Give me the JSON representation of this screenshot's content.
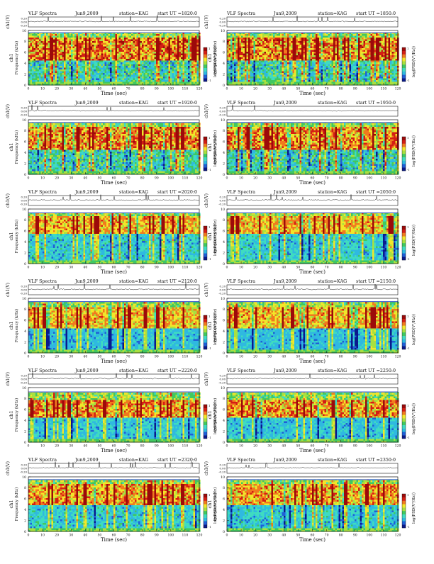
{
  "page": {
    "kind": "VLF spectrogram sheet",
    "columns": 2,
    "rows": 6
  },
  "colors": {
    "spectro_scale": [
      "#0a1a8c",
      "#1f5fd6",
      "#2fb9e0",
      "#3fdcc0",
      "#40c860",
      "#a8e040",
      "#f2e62a",
      "#f07a1e",
      "#d41e14",
      "#9c0a0a"
    ],
    "waveform": "#222222",
    "axis": "#111111",
    "hline": "#4d6bd0"
  },
  "chart_data": [
    {
      "type": "heatmap",
      "title": "VLF Spectra",
      "date": "Jun9,2009",
      "station": "station=KAG",
      "start": "start UT =1820:0",
      "wave_ylabel": "ch1(V)",
      "wave_ticks": [
        "0.20",
        "0.00",
        "-0.20"
      ],
      "ylabel_top": "ch1",
      "ylabel": "Frequency (kHz)",
      "yticks": [
        "0",
        "2",
        "4",
        "6",
        "8",
        "10"
      ],
      "xticks": [
        "0",
        "10",
        "20",
        "30",
        "40",
        "50",
        "60",
        "70",
        "80",
        "90",
        "100",
        "110",
        "120"
      ],
      "xlabel": "Time (sec)",
      "ylim": [
        0,
        10
      ],
      "xlim": [
        0,
        120
      ],
      "colorbar_label": "log(PSD(V²/Hz))",
      "colorbar_ticks": [
        "-1",
        "1"
      ],
      "top_kHz": 9.6,
      "band_kHz": [
        4.8,
        9.0
      ],
      "intensity": 0.95,
      "lower_intensity": 0.45
    },
    {
      "type": "heatmap",
      "title": "VLF Spectra",
      "date": "Jun9,2009",
      "station": "station=KAG",
      "start": "start UT =1850:0",
      "wave_ylabel": "ch1(V)",
      "wave_ticks": [
        "0.20",
        "0.00",
        "-0.20"
      ],
      "ylabel_top": "ch1",
      "ylabel": "Frequency (kHz)",
      "yticks": [
        "0",
        "2",
        "4",
        "6",
        "8",
        "10"
      ],
      "xticks": [
        "0",
        "10",
        "20",
        "30",
        "40",
        "50",
        "60",
        "70",
        "80",
        "90",
        "100",
        "110",
        "120"
      ],
      "xlabel": "Time (sec)",
      "ylim": [
        0,
        10
      ],
      "xlim": [
        0,
        120
      ],
      "colorbar_label": "log(PSD(V²/Hz))",
      "colorbar_ticks": [
        "-1",
        "1"
      ],
      "top_kHz": 9.6,
      "band_kHz": [
        4.8,
        9.0
      ],
      "intensity": 0.95,
      "lower_intensity": 0.45
    },
    {
      "type": "heatmap",
      "title": "VLF Spectra",
      "date": "Jun9,2009",
      "station": "station=KAG",
      "start": "start UT =1920:0",
      "wave_ylabel": "ch1(V)",
      "wave_ticks": [
        "0.20",
        "0.00",
        "-0.20"
      ],
      "ylabel_top": "ch1",
      "ylabel": "Frequency (kHz)",
      "yticks": [
        "0",
        "2",
        "4",
        "6",
        "8",
        "10"
      ],
      "xticks": [
        "0",
        "10",
        "20",
        "30",
        "40",
        "50",
        "60",
        "70",
        "80",
        "90",
        "100",
        "110",
        "120"
      ],
      "xlabel": "Time (sec)",
      "ylim": [
        0,
        10
      ],
      "xlim": [
        0,
        120
      ],
      "colorbar_label": "log(PSD(V²/Hz))",
      "colorbar_ticks": [
        "-1",
        "1"
      ],
      "top_kHz": 9.5,
      "band_kHz": [
        4.5,
        8.8
      ],
      "intensity": 0.9,
      "lower_intensity": 0.45
    },
    {
      "type": "heatmap",
      "title": "VLF Spectra",
      "date": "Jun9,2009",
      "station": "station=KAG",
      "start": "start UT =1950:0",
      "wave_ylabel": "ch1(V)",
      "wave_ticks": [
        "0.20",
        "0.00",
        "-0.20"
      ],
      "ylabel_top": "ch1",
      "ylabel": "Frequency (kHz)",
      "yticks": [
        "0",
        "2",
        "4",
        "6",
        "8",
        "10"
      ],
      "xticks": [
        "0",
        "10",
        "20",
        "30",
        "40",
        "50",
        "60",
        "70",
        "80",
        "90",
        "100",
        "110",
        "120"
      ],
      "xlabel": "Time (sec)",
      "ylim": [
        0,
        10
      ],
      "xlim": [
        0,
        120
      ],
      "colorbar_label": "log(PSD(V²/Hz))",
      "colorbar_ticks": [
        "-1",
        "1"
      ],
      "top_kHz": 9.5,
      "band_kHz": [
        4.5,
        8.8
      ],
      "intensity": 0.9,
      "lower_intensity": 0.45
    },
    {
      "type": "heatmap",
      "title": "VLF Spectra",
      "date": "Jun9,2009",
      "station": "station=KAG",
      "start": "start UT =2020:0",
      "wave_ylabel": "ch1(V)",
      "wave_ticks": [
        "0.20",
        "0.00",
        "-0.20"
      ],
      "ylabel_top": "ch1",
      "ylabel": "Frequency (kHz)",
      "yticks": [
        "0",
        "2",
        "4",
        "6",
        "8",
        "10"
      ],
      "xticks": [
        "0",
        "10",
        "20",
        "30",
        "40",
        "50",
        "60",
        "70",
        "80",
        "90",
        "100",
        "110",
        "120"
      ],
      "xlabel": "Time (sec)",
      "ylim": [
        0,
        10
      ],
      "xlim": [
        0,
        120
      ],
      "colorbar_label": "log(PSD(V²/Hz))",
      "colorbar_ticks": [
        "-1",
        "1"
      ],
      "top_kHz": 9.3,
      "band_kHz": [
        5.5,
        8.8
      ],
      "intensity": 0.7,
      "lower_intensity": 0.3
    },
    {
      "type": "heatmap",
      "title": "VLF Spectra",
      "date": "Jun9,2009",
      "station": "station=KAG",
      "start": "start UT =2050:0",
      "wave_ylabel": "ch1(V)",
      "wave_ticks": [
        "0.20",
        "0.00",
        "-0.20"
      ],
      "ylabel_top": "ch1",
      "ylabel": "Frequency (kHz)",
      "yticks": [
        "0",
        "2",
        "4",
        "6",
        "8",
        "10"
      ],
      "xticks": [
        "0",
        "10",
        "20",
        "30",
        "40",
        "50",
        "60",
        "70",
        "80",
        "90",
        "100",
        "110",
        "120"
      ],
      "xlabel": "Time (sec)",
      "ylim": [
        0,
        10
      ],
      "xlim": [
        0,
        120
      ],
      "colorbar_label": "log(PSD(V²/Hz))",
      "colorbar_ticks": [
        "-1",
        "1"
      ],
      "top_kHz": 9.3,
      "band_kHz": [
        5.5,
        8.8
      ],
      "intensity": 0.65,
      "lower_intensity": 0.3
    },
    {
      "type": "heatmap",
      "title": "VLF Spectra",
      "date": "Jun9,2009",
      "station": "station=KAG",
      "start": "start UT =2120:0",
      "wave_ylabel": "ch1(V)",
      "wave_ticks": [
        "0.20",
        "0.00",
        "-0.20"
      ],
      "ylabel_top": "ch1",
      "ylabel": "Frequency (kHz)",
      "yticks": [
        "0",
        "2",
        "4",
        "6",
        "8",
        "10"
      ],
      "xticks": [
        "0",
        "10",
        "20",
        "30",
        "40",
        "50",
        "60",
        "70",
        "80",
        "90",
        "100",
        "110",
        "120"
      ],
      "xlabel": "Time (sec)",
      "ylim": [
        0,
        10
      ],
      "xlim": [
        0,
        120
      ],
      "colorbar_label": "log(PSD(V²/Hz))",
      "colorbar_ticks": [
        "-1",
        "1"
      ],
      "top_kHz": 9.4,
      "band_kHz": [
        4.5,
        8.5
      ],
      "intensity": 0.65,
      "lower_intensity": 0.2
    },
    {
      "type": "heatmap",
      "title": "VLF Spectra",
      "date": "Jun9,2009",
      "station": "station=KAG",
      "start": "start UT =2150:0",
      "wave_ylabel": "ch1(V)",
      "wave_ticks": [
        "0.20",
        "0.00",
        "-0.20"
      ],
      "ylabel_top": "ch1",
      "ylabel": "Frequency (kHz)",
      "yticks": [
        "0",
        "2",
        "4",
        "6",
        "8",
        "10"
      ],
      "xticks": [
        "0",
        "10",
        "20",
        "30",
        "40",
        "50",
        "60",
        "70",
        "80",
        "90",
        "100",
        "110",
        "120"
      ],
      "xlabel": "Time (sec)",
      "ylim": [
        0,
        10
      ],
      "xlim": [
        0,
        120
      ],
      "colorbar_label": "log(PSD(V²/Hz))",
      "colorbar_ticks": [
        "-1",
        "1"
      ],
      "top_kHz": 9.4,
      "band_kHz": [
        4.5,
        8.5
      ],
      "intensity": 0.7,
      "lower_intensity": 0.2
    },
    {
      "type": "heatmap",
      "title": "VLF Spectra",
      "date": "Jun9,2009",
      "station": "station=KAG",
      "start": "start UT =2220:0",
      "wave_ylabel": "ch1(V)",
      "wave_ticks": [
        "0.20",
        "0.00",
        "-0.20"
      ],
      "ylabel_top": "ch1",
      "ylabel": "Frequency (kHz)",
      "yticks": [
        "0",
        "2",
        "4",
        "6",
        "8",
        "10"
      ],
      "xticks": [
        "0",
        "10",
        "20",
        "30",
        "40",
        "50",
        "60",
        "70",
        "80",
        "90",
        "100",
        "110",
        "120"
      ],
      "xlabel": "Time (sec)",
      "ylim": [
        0,
        10
      ],
      "xlim": [
        0,
        120
      ],
      "colorbar_label": "log(PSD(V²/Hz))",
      "colorbar_ticks": [
        "-1",
        "1"
      ],
      "top_kHz": 9.2,
      "band_kHz": [
        4.8,
        8.0
      ],
      "intensity": 0.85,
      "lower_intensity": 0.25
    },
    {
      "type": "heatmap",
      "title": "VLF Spectra",
      "date": "Jun9,2009",
      "station": "station=KAG",
      "start": "start UT =2250:0",
      "wave_ylabel": "ch1(V)",
      "wave_ticks": [
        "0.20",
        "0.00",
        "-0.20"
      ],
      "ylabel_top": "ch1",
      "ylabel": "Frequency (kHz)",
      "yticks": [
        "0",
        "2",
        "4",
        "6",
        "8",
        "10"
      ],
      "xticks": [
        "0",
        "10",
        "20",
        "30",
        "40",
        "50",
        "60",
        "70",
        "80",
        "90",
        "100",
        "110",
        "120"
      ],
      "xlabel": "Time (sec)",
      "ylim": [
        0,
        10
      ],
      "xlim": [
        0,
        120
      ],
      "colorbar_label": "log(PSD(V²/Hz))",
      "colorbar_ticks": [
        "-1",
        "1"
      ],
      "top_kHz": 9.2,
      "band_kHz": [
        4.8,
        8.0
      ],
      "intensity": 0.85,
      "lower_intensity": 0.25
    },
    {
      "type": "heatmap",
      "title": "VLF Spectra",
      "date": "Jun9,2009",
      "station": "station=KAG",
      "start": "start UT =2320:0",
      "wave_ylabel": "ch1(V)",
      "wave_ticks": [
        "0.20",
        "0.00",
        "-0.20"
      ],
      "ylabel_top": "ch1",
      "ylabel": "Frequency (kHz)",
      "yticks": [
        "0",
        "2",
        "4",
        "6",
        "8",
        "10"
      ],
      "xticks": [
        "0",
        "10",
        "20",
        "30",
        "40",
        "50",
        "60",
        "70",
        "80",
        "90",
        "100",
        "110",
        "120"
      ],
      "xlabel": "Time (sec)",
      "ylim": [
        0,
        10
      ],
      "xlim": [
        0,
        120
      ],
      "colorbar_label": "log(PSD(V²/Hz))",
      "colorbar_ticks": [
        "-1",
        "1"
      ],
      "top_kHz": 9.5,
      "band_kHz": [
        5.0,
        9.0
      ],
      "intensity": 0.8,
      "lower_intensity": 0.3
    },
    {
      "type": "heatmap",
      "title": "VLF Spectra",
      "date": "Jun9,2009",
      "station": "station=KAG",
      "start": "start UT =2350:0",
      "wave_ylabel": "ch1(V)",
      "wave_ticks": [
        "0.20",
        "0.00",
        "-0.20"
      ],
      "ylabel_top": "ch1",
      "ylabel": "Frequency (kHz)",
      "yticks": [
        "0",
        "2",
        "4",
        "6",
        "8",
        "10"
      ],
      "xticks": [
        "0",
        "10",
        "20",
        "30",
        "40",
        "50",
        "60",
        "70",
        "80",
        "90",
        "100",
        "110",
        "120"
      ],
      "xlabel": "Time (sec)",
      "ylim": [
        0,
        10
      ],
      "xlim": [
        0,
        120
      ],
      "colorbar_label": "log(PSD(V²/Hz))",
      "colorbar_ticks": [
        "-1",
        "1"
      ],
      "top_kHz": 9.5,
      "band_kHz": [
        5.0,
        9.0
      ],
      "intensity": 0.75,
      "lower_intensity": 0.3
    }
  ]
}
